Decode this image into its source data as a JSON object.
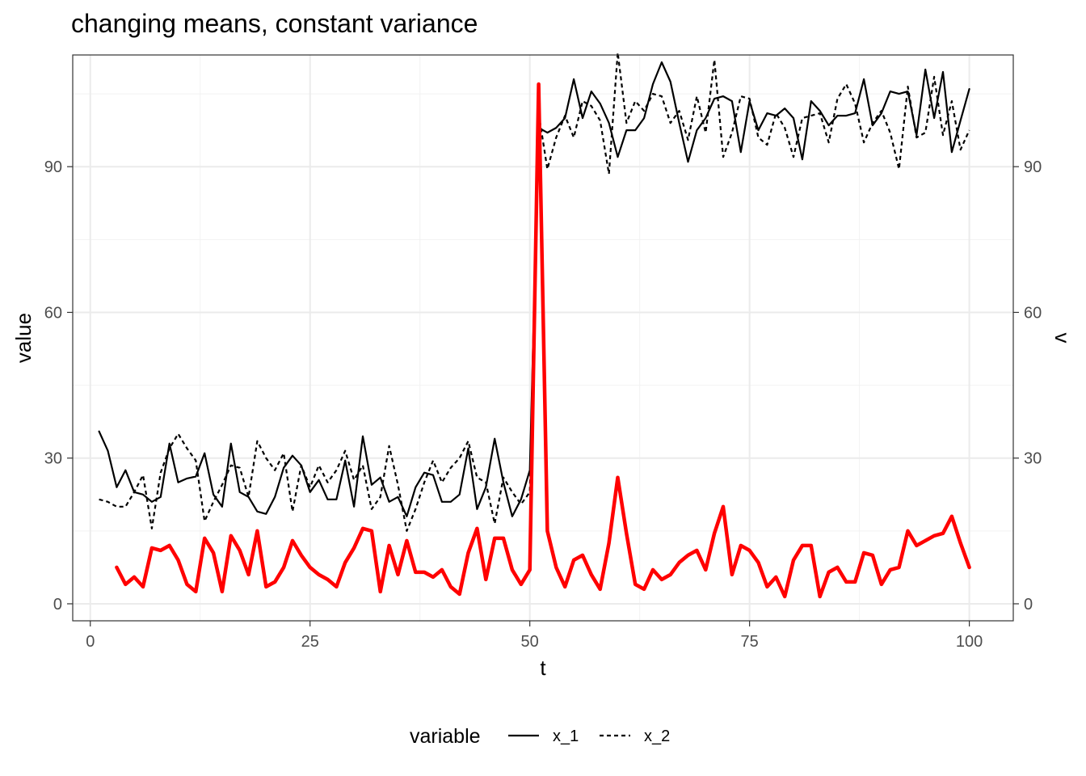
{
  "chart_data": {
    "type": "line",
    "title": "changing means, constant variance",
    "xlabel": "t",
    "ylabel": "value",
    "y2label": "v",
    "xlim": [
      -2,
      105
    ],
    "ylim": [
      -3.5,
      113
    ],
    "x_ticks": [
      0,
      25,
      50,
      75,
      100
    ],
    "y_ticks": [
      0,
      30,
      60,
      90
    ],
    "grid": true,
    "legend": {
      "title": "variable",
      "position": "bottom"
    },
    "series": [
      {
        "name": "x_1",
        "color": "#000000",
        "linestyle": "solid",
        "x_start": 1,
        "values": [
          35.5,
          31.5,
          24,
          27.5,
          23,
          22.5,
          21,
          22,
          33,
          25,
          25.8,
          26.2,
          31,
          22.5,
          20,
          33,
          23,
          22,
          19,
          18.5,
          22,
          28,
          30.5,
          28.5,
          23,
          25.5,
          21.5,
          21.5,
          29.5,
          20,
          34.5,
          24.5,
          26,
          21,
          22,
          18,
          24,
          27,
          26.5,
          21,
          21,
          22.5,
          32,
          19.5,
          24,
          34,
          25,
          18,
          21.5,
          27.5,
          98,
          97,
          98,
          100,
          108,
          100,
          105.5,
          103,
          99,
          92,
          97.5,
          97.5,
          100,
          107,
          111.5,
          107.5,
          99,
          91,
          97.5,
          100,
          104,
          104.5,
          103.5,
          93,
          103.5,
          97.5,
          101,
          100.5,
          102,
          100,
          91.5,
          103.5,
          101.5,
          98.5,
          100.5,
          100.5,
          101,
          108,
          98.5,
          101,
          105.5,
          105,
          105.5,
          96.5,
          110,
          100,
          109.5,
          93,
          99.5,
          106
        ]
      },
      {
        "name": "x_2",
        "color": "#000000",
        "linestyle": "dashed",
        "x_start": 1,
        "values": [
          21.5,
          21,
          20,
          20,
          23,
          26.5,
          15.5,
          27,
          32,
          35,
          32,
          29.5,
          17,
          21,
          24.5,
          28.5,
          28,
          22,
          33.5,
          30,
          27.5,
          31,
          19,
          28.5,
          24,
          28.5,
          25,
          27.5,
          31.5,
          25.5,
          28.5,
          19.5,
          22,
          32.5,
          24.5,
          15,
          19.5,
          25,
          29.5,
          25,
          28,
          30,
          33.5,
          26,
          25,
          16.5,
          26,
          23,
          20.5,
          23,
          101,
          89.5,
          96,
          100.5,
          96,
          103.5,
          102.5,
          99.5,
          88.5,
          113.5,
          99,
          103.5,
          101.5,
          105,
          104.5,
          99,
          101.5,
          95.5,
          104.5,
          97,
          112,
          92,
          97,
          104.5,
          104,
          96,
          94.5,
          101,
          98,
          92,
          100,
          100.5,
          101,
          95,
          104,
          107,
          103,
          95,
          99,
          101.5,
          97,
          89.5,
          106.5,
          96,
          97,
          108.5,
          96.5,
          103.5,
          93.5,
          97.5
        ]
      },
      {
        "name": "",
        "color": "#ff0000",
        "linestyle": "solid",
        "x_start": 3,
        "values": [
          7.5,
          4,
          5.5,
          3.5,
          11.5,
          11,
          12,
          9,
          4,
          2.5,
          13.5,
          10.5,
          2.5,
          14,
          11,
          6,
          15,
          3.5,
          4.5,
          7.5,
          13,
          10,
          7.5,
          6,
          5,
          3.5,
          8.5,
          11.5,
          15.5,
          15,
          2.5,
          12,
          6,
          13,
          6.5,
          6.5,
          5.5,
          7,
          3.5,
          2,
          10.5,
          15.5,
          5,
          13.5,
          13.5,
          7,
          4,
          7,
          107,
          15,
          7.5,
          3.5,
          9,
          10,
          6,
          3,
          12.5,
          26,
          14.5,
          4,
          3,
          7,
          5,
          6,
          8.5,
          10,
          11,
          7,
          14.5,
          20,
          6,
          12,
          11,
          8.5,
          3.5,
          5.5,
          1.5,
          9,
          12,
          12,
          1.5,
          6.5,
          7.5,
          4.5,
          4.5,
          10.5,
          10,
          4,
          7,
          7.5,
          15,
          12,
          13,
          14,
          14.5,
          18,
          12.5,
          7.5
        ]
      }
    ]
  }
}
